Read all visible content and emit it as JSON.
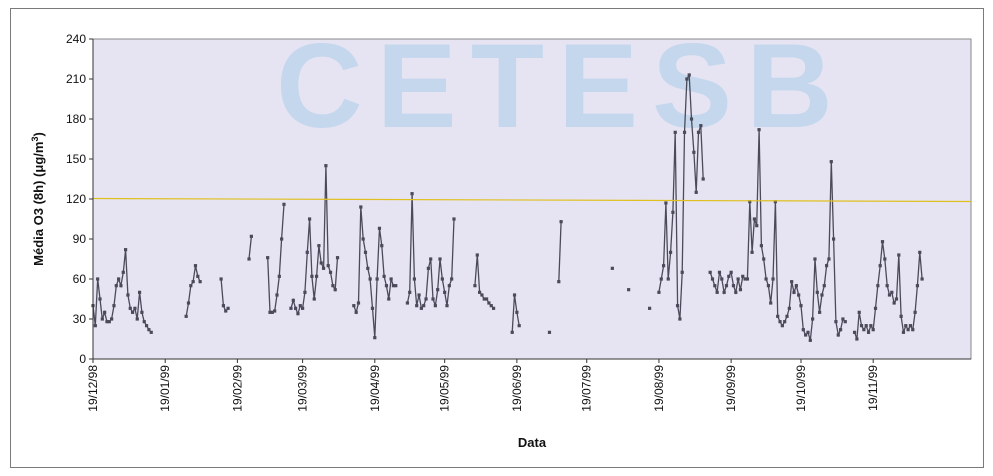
{
  "watermark": "CETESB",
  "chart_data": {
    "type": "line",
    "xlabel": "Data",
    "ylabel": "Média O3 (8h) (μg/m³)",
    "ylabel_parts": [
      "Média O3 (8h) (",
      "μ",
      "g/m",
      "3",
      ")"
    ],
    "ylim": [
      0,
      240
    ],
    "yticks": [
      0,
      30,
      60,
      90,
      120,
      150,
      180,
      210,
      240
    ],
    "xlim": [
      "1998-12-19",
      "1999-12-31"
    ],
    "xtick_labels": [
      "19/12/98",
      "19/01/99",
      "19/02/99",
      "19/03/99",
      "19/04/99",
      "19/05/99",
      "19/06/99",
      "19/07/99",
      "19/08/99",
      "19/09/99",
      "19/10/99",
      "19/11/99"
    ],
    "xtick_dates": [
      "1998-12-19",
      "1999-01-19",
      "1999-02-19",
      "1999-03-19",
      "1999-04-19",
      "1999-05-19",
      "1999-06-19",
      "1999-07-19",
      "1999-08-19",
      "1999-09-19",
      "1999-10-19",
      "1999-11-19"
    ],
    "grid": false,
    "legend": "none",
    "plot_background": "#e6e4f2",
    "colors": {
      "series": "#4a4a5a",
      "reference": "#e0c020",
      "watermark": "#9ec8e8"
    },
    "reference_line": {
      "y": 120,
      "color": "#e0c020"
    },
    "series": [
      {
        "segments": [
          [
            [
              "1998-12-19",
              40
            ],
            [
              "1998-12-20",
              25
            ],
            [
              "1998-12-21",
              60
            ],
            [
              "1998-12-22",
              45
            ],
            [
              "1998-12-23",
              30
            ],
            [
              "1998-12-24",
              35
            ],
            [
              "1998-12-25",
              28
            ],
            [
              "1998-12-26",
              28
            ],
            [
              "1998-12-27",
              30
            ],
            [
              "1998-12-28",
              40
            ],
            [
              "1998-12-29",
              55
            ],
            [
              "1998-12-30",
              60
            ],
            [
              "1998-12-31",
              55
            ],
            [
              "1999-01-01",
              65
            ],
            [
              "1999-01-02",
              82
            ],
            [
              "1999-01-03",
              48
            ],
            [
              "1999-01-04",
              38
            ],
            [
              "1999-01-05",
              35
            ],
            [
              "1999-01-06",
              38
            ],
            [
              "1999-01-07",
              30
            ],
            [
              "1999-01-08",
              50
            ],
            [
              "1999-01-09",
              35
            ],
            [
              "1999-01-10",
              28
            ],
            [
              "1999-01-11",
              25
            ],
            [
              "1999-01-12",
              22
            ],
            [
              "1999-01-13",
              20
            ]
          ],
          [
            [
              "1999-01-28",
              32
            ],
            [
              "1999-01-29",
              42
            ],
            [
              "1999-01-30",
              55
            ],
            [
              "1999-01-31",
              58
            ],
            [
              "1999-02-01",
              70
            ],
            [
              "1999-02-02",
              62
            ],
            [
              "1999-02-03",
              58
            ]
          ],
          [
            [
              "1999-02-12",
              60
            ],
            [
              "1999-02-13",
              40
            ],
            [
              "1999-02-14",
              36
            ],
            [
              "1999-02-15",
              38
            ]
          ],
          [
            [
              "1999-02-24",
              75
            ],
            [
              "1999-02-25",
              92
            ]
          ],
          [
            [
              "1999-03-04",
              76
            ],
            [
              "1999-03-05",
              35
            ],
            [
              "1999-03-06",
              35
            ],
            [
              "1999-03-07",
              36
            ],
            [
              "1999-03-08",
              48
            ],
            [
              "1999-03-09",
              62
            ],
            [
              "1999-03-10",
              90
            ],
            [
              "1999-03-11",
              116
            ]
          ],
          [
            [
              "1999-03-14",
              38
            ],
            [
              "1999-03-15",
              44
            ],
            [
              "1999-03-16",
              38
            ],
            [
              "1999-03-17",
              34
            ],
            [
              "1999-03-18",
              40
            ],
            [
              "1999-03-19",
              38
            ],
            [
              "1999-03-20",
              50
            ],
            [
              "1999-03-21",
              80
            ],
            [
              "1999-03-22",
              105
            ],
            [
              "1999-03-23",
              62
            ],
            [
              "1999-03-24",
              45
            ],
            [
              "1999-03-25",
              62
            ],
            [
              "1999-03-26",
              85
            ],
            [
              "1999-03-27",
              72
            ],
            [
              "1999-03-28",
              68
            ],
            [
              "1999-03-29",
              145
            ],
            [
              "1999-03-30",
              70
            ],
            [
              "1999-03-31",
              65
            ],
            [
              "1999-04-01",
              55
            ],
            [
              "1999-04-02",
              52
            ],
            [
              "1999-04-03",
              76
            ]
          ],
          [
            [
              "1999-04-10",
              40
            ],
            [
              "1999-04-11",
              35
            ],
            [
              "1999-04-12",
              42
            ],
            [
              "1999-04-13",
              114
            ],
            [
              "1999-04-14",
              90
            ],
            [
              "1999-04-15",
              80
            ],
            [
              "1999-04-16",
              68
            ],
            [
              "1999-04-17",
              60
            ],
            [
              "1999-04-18",
              38
            ],
            [
              "1999-04-19",
              16
            ],
            [
              "1999-04-20",
              60
            ],
            [
              "1999-04-21",
              98
            ],
            [
              "1999-04-22",
              85
            ],
            [
              "1999-04-23",
              62
            ],
            [
              "1999-04-24",
              55
            ],
            [
              "1999-04-25",
              45
            ],
            [
              "1999-04-26",
              60
            ],
            [
              "1999-04-27",
              55
            ],
            [
              "1999-04-28",
              55
            ]
          ],
          [
            [
              "1999-05-03",
              42
            ],
            [
              "1999-05-04",
              50
            ],
            [
              "1999-05-05",
              124
            ],
            [
              "1999-05-06",
              60
            ],
            [
              "1999-05-07",
              40
            ],
            [
              "1999-05-08",
              48
            ],
            [
              "1999-05-09",
              38
            ],
            [
              "1999-05-10",
              40
            ],
            [
              "1999-05-11",
              45
            ],
            [
              "1999-05-12",
              68
            ],
            [
              "1999-05-13",
              75
            ],
            [
              "1999-05-14",
              45
            ],
            [
              "1999-05-15",
              40
            ],
            [
              "1999-05-16",
              52
            ],
            [
              "1999-05-17",
              75
            ],
            [
              "1999-05-18",
              60
            ],
            [
              "1999-05-19",
              50
            ],
            [
              "1999-05-20",
              40
            ],
            [
              "1999-05-21",
              55
            ],
            [
              "1999-05-22",
              60
            ],
            [
              "1999-05-23",
              105
            ]
          ],
          [
            [
              "1999-06-01",
              55
            ],
            [
              "1999-06-02",
              78
            ],
            [
              "1999-06-03",
              50
            ],
            [
              "1999-06-04",
              48
            ],
            [
              "1999-06-05",
              45
            ],
            [
              "1999-06-06",
              45
            ],
            [
              "1999-06-07",
              42
            ],
            [
              "1999-06-08",
              40
            ],
            [
              "1999-06-09",
              38
            ]
          ],
          [
            [
              "1999-06-17",
              20
            ],
            [
              "1999-06-18",
              48
            ],
            [
              "1999-06-19",
              35
            ],
            [
              "1999-06-20",
              25
            ]
          ],
          [
            [
              "1999-07-03",
              20
            ]
          ],
          [
            [
              "1999-07-07",
              58
            ],
            [
              "1999-07-08",
              103
            ]
          ],
          [
            [
              "1999-08-15",
              38
            ]
          ],
          [
            [
              "1999-07-30",
              68
            ]
          ],
          [
            [
              "1999-08-06",
              52
            ]
          ],
          [
            [
              "1999-08-19",
              50
            ],
            [
              "1999-08-20",
              60
            ],
            [
              "1999-08-21",
              70
            ],
            [
              "1999-08-22",
              117
            ],
            [
              "1999-08-23",
              60
            ],
            [
              "1999-08-24",
              80
            ],
            [
              "1999-08-25",
              110
            ],
            [
              "1999-08-26",
              170
            ],
            [
              "1999-08-27",
              40
            ],
            [
              "1999-08-28",
              30
            ],
            [
              "1999-08-29",
              65
            ],
            [
              "1999-08-30",
              170
            ],
            [
              "1999-08-31",
              210
            ],
            [
              "1999-09-01",
              213
            ],
            [
              "1999-09-02",
              180
            ],
            [
              "1999-09-03",
              155
            ],
            [
              "1999-09-04",
              125
            ],
            [
              "1999-09-05",
              170
            ],
            [
              "1999-09-06",
              175
            ],
            [
              "1999-09-07",
              135
            ]
          ],
          [
            [
              "1999-09-10",
              65
            ],
            [
              "1999-09-11",
              60
            ],
            [
              "1999-09-12",
              55
            ],
            [
              "1999-09-13",
              50
            ],
            [
              "1999-09-14",
              65
            ],
            [
              "1999-09-15",
              60
            ],
            [
              "1999-09-16",
              50
            ],
            [
              "1999-09-17",
              55
            ],
            [
              "1999-09-18",
              62
            ],
            [
              "1999-09-19",
              65
            ],
            [
              "1999-09-20",
              55
            ],
            [
              "1999-09-21",
              50
            ],
            [
              "1999-09-22",
              60
            ],
            [
              "1999-09-23",
              52
            ],
            [
              "1999-09-24",
              62
            ],
            [
              "1999-09-25",
              60
            ],
            [
              "1999-09-26",
              60
            ],
            [
              "1999-09-27",
              118
            ],
            [
              "1999-09-28",
              80
            ],
            [
              "1999-09-29",
              105
            ],
            [
              "1999-09-30",
              100
            ],
            [
              "1999-10-01",
              172
            ],
            [
              "1999-10-02",
              85
            ],
            [
              "1999-10-03",
              75
            ],
            [
              "1999-10-04",
              60
            ],
            [
              "1999-10-05",
              55
            ],
            [
              "1999-10-06",
              42
            ],
            [
              "1999-10-07",
              60
            ],
            [
              "1999-10-08",
              118
            ],
            [
              "1999-10-09",
              32
            ],
            [
              "1999-10-10",
              28
            ],
            [
              "1999-10-11",
              25
            ],
            [
              "1999-10-12",
              28
            ],
            [
              "1999-10-13",
              32
            ],
            [
              "1999-10-14",
              38
            ],
            [
              "1999-10-15",
              58
            ],
            [
              "1999-10-16",
              50
            ],
            [
              "1999-10-17",
              55
            ],
            [
              "1999-10-18",
              48
            ],
            [
              "1999-10-19",
              40
            ],
            [
              "1999-10-20",
              22
            ],
            [
              "1999-10-21",
              18
            ],
            [
              "1999-10-22",
              20
            ],
            [
              "1999-10-23",
              14
            ],
            [
              "1999-10-24",
              30
            ],
            [
              "1999-10-25",
              75
            ],
            [
              "1999-10-26",
              50
            ],
            [
              "1999-10-27",
              35
            ],
            [
              "1999-10-28",
              48
            ],
            [
              "1999-10-29",
              55
            ],
            [
              "1999-10-30",
              70
            ],
            [
              "1999-10-31",
              75
            ],
            [
              "1999-11-01",
              148
            ],
            [
              "1999-11-02",
              90
            ],
            [
              "1999-11-03",
              28
            ],
            [
              "1999-11-04",
              18
            ],
            [
              "1999-11-05",
              22
            ],
            [
              "1999-11-06",
              30
            ],
            [
              "1999-11-07",
              28
            ]
          ],
          [
            [
              "1999-11-11",
              20
            ],
            [
              "1999-11-12",
              15
            ],
            [
              "1999-11-13",
              35
            ],
            [
              "1999-11-14",
              25
            ],
            [
              "1999-11-15",
              22
            ],
            [
              "1999-11-16",
              25
            ],
            [
              "1999-11-17",
              20
            ],
            [
              "1999-11-18",
              25
            ],
            [
              "1999-11-19",
              22
            ],
            [
              "1999-11-20",
              38
            ],
            [
              "1999-11-21",
              55
            ],
            [
              "1999-11-22",
              70
            ],
            [
              "1999-11-23",
              88
            ],
            [
              "1999-11-24",
              75
            ],
            [
              "1999-11-25",
              55
            ],
            [
              "1999-11-26",
              48
            ],
            [
              "1999-11-27",
              50
            ],
            [
              "1999-11-28",
              42
            ],
            [
              "1999-11-29",
              45
            ],
            [
              "1999-11-30",
              78
            ],
            [
              "1999-12-01",
              32
            ],
            [
              "1999-12-02",
              20
            ],
            [
              "1999-12-03",
              25
            ],
            [
              "1999-12-04",
              22
            ],
            [
              "1999-12-05",
              25
            ],
            [
              "1999-12-06",
              22
            ],
            [
              "1999-12-07",
              35
            ],
            [
              "1999-12-08",
              55
            ],
            [
              "1999-12-09",
              80
            ],
            [
              "1999-12-10",
              60
            ]
          ]
        ]
      }
    ]
  }
}
